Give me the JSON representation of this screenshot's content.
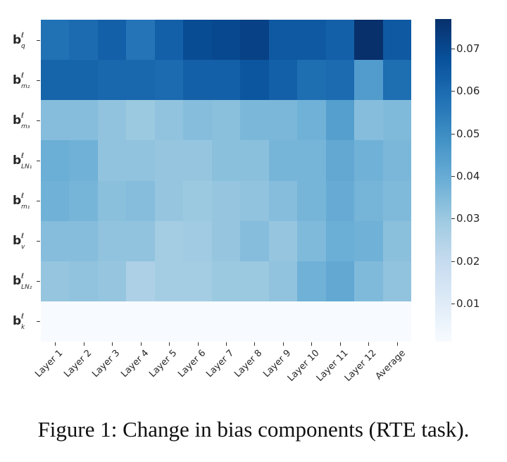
{
  "figure": {
    "caption": "Figure 1: Change in bias components (RTE task)."
  },
  "colorbar": {
    "min": 0.001,
    "max": 0.077,
    "ticks": [
      "0.07",
      "0.06",
      "0.05",
      "0.04",
      "0.03",
      "0.02",
      "0.01"
    ],
    "tick_values": [
      0.07,
      0.06,
      0.05,
      0.04,
      0.03,
      0.02,
      0.01
    ],
    "colormap": "Blues",
    "stops": [
      "#f7fbff",
      "#deebf7",
      "#c6dbef",
      "#9ecae1",
      "#6baed6",
      "#4292c6",
      "#2171b5",
      "#08519c",
      "#08306b"
    ]
  },
  "chart_data": {
    "type": "heatmap",
    "title": "",
    "caption": "Figure 1: Change in bias components (RTE task).",
    "xlabel": "",
    "ylabel": "",
    "x_categories": [
      "Layer 1",
      "Layer 2",
      "Layer 3",
      "Layer 4",
      "Layer 5",
      "Layer 6",
      "Layer 7",
      "Layer 8",
      "Layer 9",
      "Layer 10",
      "Layer 11",
      "Layer 12",
      "Average"
    ],
    "y_categories": [
      {
        "base": "b",
        "sup": "ℓ",
        "sub": "q"
      },
      {
        "base": "b",
        "sup": "ℓ",
        "sub": "m₂"
      },
      {
        "base": "b",
        "sup": "ℓ",
        "sub": "m₃"
      },
      {
        "base": "b",
        "sup": "ℓ",
        "sub": "LN₁"
      },
      {
        "base": "b",
        "sup": "ℓ",
        "sub": "m₁"
      },
      {
        "base": "b",
        "sup": "ℓ",
        "sub": "v"
      },
      {
        "base": "b",
        "sup": "ℓ",
        "sub": "LN₂"
      },
      {
        "base": "b",
        "sup": "ℓ",
        "sub": "k"
      }
    ],
    "values": [
      [
        0.058,
        0.06,
        0.063,
        0.057,
        0.063,
        0.069,
        0.07,
        0.072,
        0.065,
        0.065,
        0.063,
        0.077,
        0.065
      ],
      [
        0.062,
        0.062,
        0.061,
        0.061,
        0.06,
        0.063,
        0.063,
        0.066,
        0.063,
        0.059,
        0.06,
        0.045,
        0.059
      ],
      [
        0.034,
        0.034,
        0.032,
        0.03,
        0.032,
        0.034,
        0.033,
        0.036,
        0.036,
        0.038,
        0.044,
        0.034,
        0.035
      ],
      [
        0.039,
        0.038,
        0.032,
        0.032,
        0.031,
        0.031,
        0.033,
        0.033,
        0.037,
        0.037,
        0.041,
        0.038,
        0.036
      ],
      [
        0.038,
        0.037,
        0.033,
        0.034,
        0.031,
        0.03,
        0.031,
        0.032,
        0.034,
        0.037,
        0.04,
        0.037,
        0.035
      ],
      [
        0.034,
        0.034,
        0.032,
        0.032,
        0.028,
        0.029,
        0.031,
        0.034,
        0.031,
        0.035,
        0.039,
        0.038,
        0.033
      ],
      [
        0.031,
        0.032,
        0.031,
        0.026,
        0.028,
        0.028,
        0.03,
        0.03,
        0.032,
        0.038,
        0.041,
        0.035,
        0.032
      ],
      [
        0.001,
        0.001,
        0.001,
        0.001,
        0.001,
        0.001,
        0.001,
        0.001,
        0.001,
        0.001,
        0.001,
        0.001,
        0.001
      ]
    ],
    "colorbar_range": [
      0.001,
      0.077
    ],
    "colorbar_ticks": [
      0.01,
      0.02,
      0.03,
      0.04,
      0.05,
      0.06,
      0.07
    ],
    "grid": false,
    "legend_position": "right (colorbar)"
  }
}
